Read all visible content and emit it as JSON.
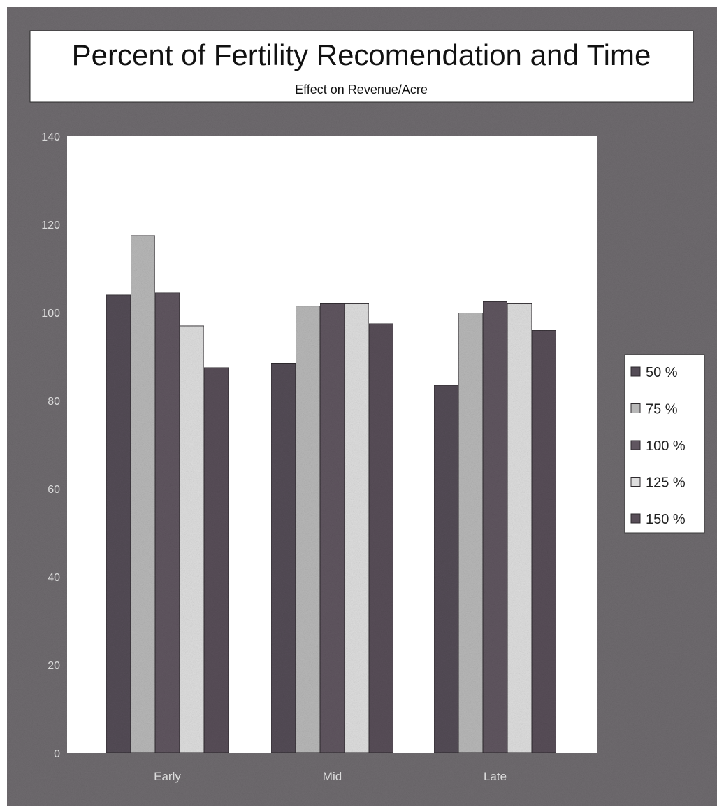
{
  "colors": {
    "page_background": "#ffffff",
    "background": "#6f6b6f",
    "plot_area": "#ffffff",
    "tick_label": "#dcdcdc",
    "series": [
      "#544c56",
      "#b8b8b8",
      "#605660",
      "#dedede",
      "#584e58"
    ]
  },
  "chart_data": {
    "type": "bar",
    "title": "Percent of Fertility Recomendation and Time",
    "subtitle": "Effect on Revenue/Acre",
    "xlabel": "",
    "ylabel": "",
    "categories": [
      "Early",
      "Mid",
      "Late"
    ],
    "ylim": [
      0,
      140
    ],
    "yticks": [
      0,
      20,
      40,
      60,
      80,
      100,
      120,
      140
    ],
    "grid": false,
    "legend_position": "right",
    "series": [
      {
        "name": "50 %",
        "values": [
          104,
          88.5,
          83.5
        ]
      },
      {
        "name": "75 %",
        "values": [
          117.5,
          101.5,
          100
        ]
      },
      {
        "name": "100 %",
        "values": [
          104.5,
          102,
          102.5
        ]
      },
      {
        "name": "125 %",
        "values": [
          97,
          102,
          102
        ]
      },
      {
        "name": "150 %",
        "values": [
          87.5,
          97.5,
          96
        ]
      }
    ]
  }
}
